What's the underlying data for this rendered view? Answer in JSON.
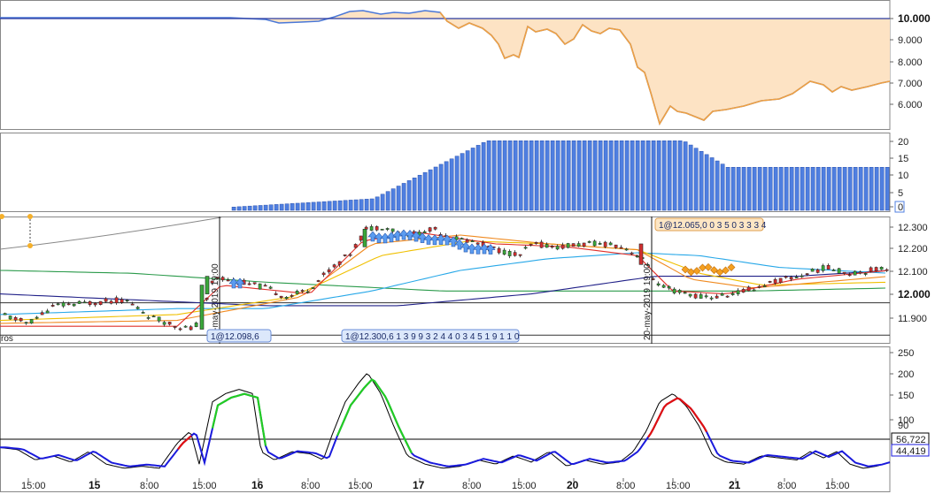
{
  "colors": {
    "equity_line": "#4a78d8",
    "equity_fill": "#fde3c4",
    "equity_under": "#f0a040",
    "bars": "#4f7fe0",
    "bull": "#3aa83a",
    "bear": "#d22f2f",
    "osc_black": "#000000",
    "osc_blue": "#1a1adc",
    "osc_green": "#22cc22",
    "osc_red": "#e01010",
    "ma_red": "#e0302a",
    "ma_orange": "#f08a20",
    "ma_yellow": "#f0c000",
    "ma_cyan": "#28a8e8",
    "ma_green": "#2a9a4a",
    "ma_navy": "#202088",
    "arrow_blue": "#5b9cf0",
    "marker_orange": "#f5a020"
  },
  "equity_panel": {
    "y_ticks": [
      "10.000",
      "9.000",
      "8.000",
      "7.000",
      "6.000"
    ],
    "highlight_tick": "10.000"
  },
  "volume_panel": {
    "y_ticks": [
      "20",
      "15",
      "10",
      "5",
      "0"
    ]
  },
  "price_panel": {
    "y_ticks": [
      "12.300",
      "12.200",
      "12.100",
      "12.000",
      "11.900"
    ],
    "highlight_tick": "12.000",
    "label_left": "ros",
    "trade_tag_1": "1@12.098,6",
    "trade_tag_2": "1@12.300,6",
    "trade_tag_3": "1@12.065,0",
    "date_marker_1": "15-may-2019 19:00",
    "date_marker_2": "20-may-2019 19:00"
  },
  "osc_panel": {
    "y_ticks": [
      "250",
      "200",
      "150",
      "100"
    ],
    "level_label": "90",
    "value_black": "56,722",
    "value_blue": "44,419"
  },
  "time_axis": {
    "labels": [
      {
        "text": "15:00",
        "bold": false
      },
      {
        "text": "15",
        "bold": true
      },
      {
        "text": "8:00",
        "bold": false
      },
      {
        "text": "15:00",
        "bold": false
      },
      {
        "text": "16",
        "bold": true
      },
      {
        "text": "8:00",
        "bold": false
      },
      {
        "text": "15:00",
        "bold": false
      },
      {
        "text": "17",
        "bold": true
      },
      {
        "text": "8:00",
        "bold": false
      },
      {
        "text": "15:00",
        "bold": false
      },
      {
        "text": "20",
        "bold": true
      },
      {
        "text": "8:00",
        "bold": false
      },
      {
        "text": "15:00",
        "bold": false
      },
      {
        "text": "21",
        "bold": true
      },
      {
        "text": "8:00",
        "bold": false
      },
      {
        "text": "15:00",
        "bold": false
      }
    ]
  }
}
